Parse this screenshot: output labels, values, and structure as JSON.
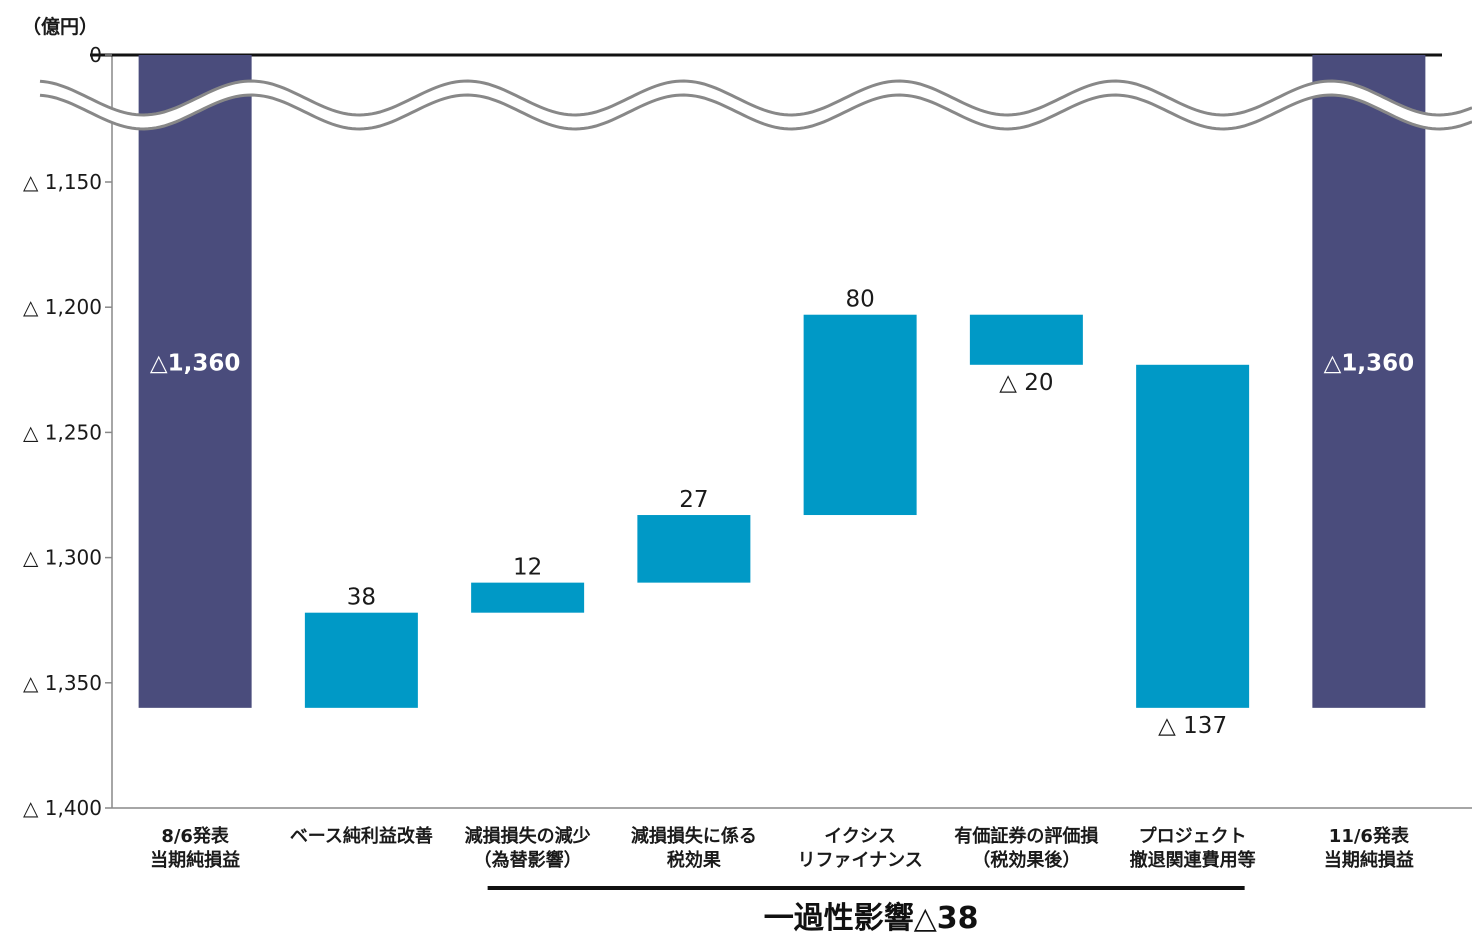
{
  "chart_data": {
    "type": "bar",
    "unit_label": "（億円）",
    "y_ticks": [
      "0",
      "△ 1,150",
      "△ 1,200",
      "△ 1,250",
      "△ 1,300",
      "△ 1,350",
      "△ 1,400"
    ],
    "y_tick_values": [
      0,
      -1150,
      -1200,
      -1250,
      -1300,
      -1350,
      -1400
    ],
    "ylim": [
      -1400,
      0
    ],
    "axis_break": true,
    "categories": [
      [
        "8/6発表",
        "当期純損益"
      ],
      [
        "ベース純利益改善"
      ],
      [
        "減損損失の減少",
        "（為替影響）"
      ],
      [
        "減損損失に係る",
        "税効果"
      ],
      [
        "イクシス",
        "リファイナンス"
      ],
      [
        "有価証券の評価損",
        "（税効果後）"
      ],
      [
        "プロジェクト",
        "撤退関連費用等"
      ],
      [
        "11/6発表",
        "当期純損益"
      ]
    ],
    "bars": [
      {
        "kind": "total",
        "start": 0,
        "end": -1360,
        "label": "△1,360"
      },
      {
        "kind": "delta",
        "start": -1360,
        "end": -1322,
        "label": "38"
      },
      {
        "kind": "delta",
        "start": -1322,
        "end": -1310,
        "label": "12"
      },
      {
        "kind": "delta",
        "start": -1310,
        "end": -1283,
        "label": "27"
      },
      {
        "kind": "delta",
        "start": -1283,
        "end": -1203,
        "label": "80"
      },
      {
        "kind": "delta",
        "start": -1203,
        "end": -1223,
        "label": "△ 20"
      },
      {
        "kind": "delta",
        "start": -1223,
        "end": -1360,
        "label": "△ 137"
      },
      {
        "kind": "total",
        "start": 0,
        "end": -1360,
        "label": "△1,360"
      }
    ],
    "bracket_label": "一過性影響△38",
    "bracket_covers": [
      2,
      6
    ],
    "colors": {
      "total": "#4a4c7c",
      "delta": "#0099c6",
      "axis": "#888888",
      "baseline": "#111111"
    }
  }
}
